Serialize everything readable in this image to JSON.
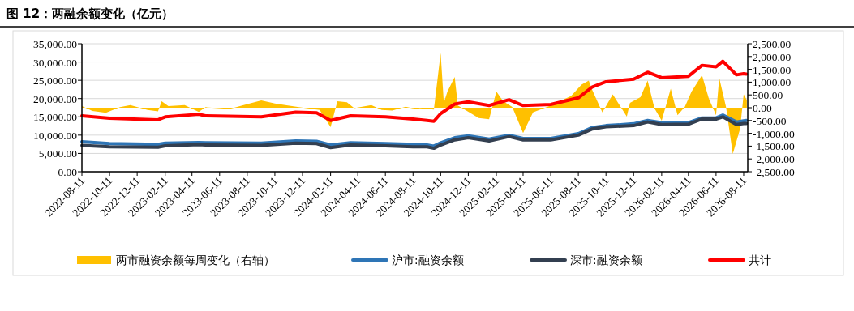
{
  "chart_data": {
    "type": "line",
    "title": "图 12：两融余额变化（亿元）",
    "xlim": [
      "2022-08-11",
      "2026-08-20"
    ],
    "xticks": [
      "2022-08-11",
      "2022-10-11",
      "2022-12-11",
      "2023-02-11",
      "2023-04-11",
      "2023-06-11",
      "2023-08-11",
      "2023-10-11",
      "2023-12-11",
      "2024-02-11",
      "2024-04-11",
      "2024-06-11",
      "2024-08-11",
      "2024-10-11",
      "2024-12-11",
      "2025-02-11",
      "2025-04-11",
      "2025-06-11",
      "2025-08-11",
      "2025-10-11",
      "2025-12-11",
      "2026-02-11",
      "2026-04-11",
      "2026-06-11",
      "2026-08-11"
    ],
    "ylim": [
      0,
      35000
    ],
    "yticks": [
      {
        "value": 0,
        "label": "0.00"
      },
      {
        "value": 5000,
        "label": "5,000.00"
      },
      {
        "value": 10000,
        "label": "10,000.00"
      },
      {
        "value": 15000,
        "label": "15,000.00"
      },
      {
        "value": 20000,
        "label": "20,000.00"
      },
      {
        "value": 25000,
        "label": "25,000.00"
      },
      {
        "value": 30000,
        "label": "30,000.00"
      },
      {
        "value": 35000,
        "label": "35,000.00"
      }
    ],
    "y2lim": [
      -2500,
      2500
    ],
    "y2ticks": [
      {
        "value": -2500,
        "label": "-2,500.00"
      },
      {
        "value": -2000,
        "label": "-2,000.00"
      },
      {
        "value": -1500,
        "label": "-1,500.00"
      },
      {
        "value": -1000,
        "label": "-1,000.00"
      },
      {
        "value": -500,
        "label": "-500.00"
      },
      {
        "value": 0,
        "label": "0.00"
      },
      {
        "value": 500,
        "label": "500.00"
      },
      {
        "value": 1000,
        "label": "1,000.00"
      },
      {
        "value": 1500,
        "label": "1,500.00"
      },
      {
        "value": 2000,
        "label": "2,000.00"
      },
      {
        "value": 2500,
        "label": "2,500.00"
      }
    ],
    "grid": "y",
    "legend": "bottom",
    "marker": "none",
    "line_style": "solid",
    "x": [
      "2022-08-11",
      "2022-10-11",
      "2023-01-26",
      "2023-02-11",
      "2023-04-26",
      "2023-05-11",
      "2023-09-11",
      "2023-11-26",
      "2024-01-11",
      "2024-02-11",
      "2024-03-26",
      "2024-06-11",
      "2024-08-11",
      "2024-09-11",
      "2024-09-26",
      "2024-10-11",
      "2024-11-11",
      "2024-12-11",
      "2025-01-26",
      "2025-03-11",
      "2025-04-11",
      "2025-06-11",
      "2025-08-11",
      "2025-09-11",
      "2025-10-11",
      "2025-12-11",
      "2026-01-11",
      "2026-02-11",
      "2026-04-11",
      "2026-05-11",
      "2026-06-11",
      "2026-06-26",
      "2026-07-26",
      "2026-08-11",
      "2026-08-17"
    ],
    "series": [
      {
        "name": "两市融资余额每周变化（右轴）",
        "type": "area",
        "axis": "y2",
        "color": "#ffc000",
        "x": [
          "2022-08-11",
          "2022-09-03",
          "2022-10-03",
          "2022-11-03",
          "2022-11-26",
          "2023-01-03",
          "2023-01-26",
          "2023-02-03",
          "2023-02-18",
          "2023-03-26",
          "2023-04-26",
          "2023-05-11",
          "2023-07-03",
          "2023-08-03",
          "2023-09-11",
          "2023-10-11",
          "2023-11-03",
          "2023-12-03",
          "2024-01-18",
          "2024-02-11",
          "2024-02-26",
          "2024-03-18",
          "2024-04-03",
          "2024-05-11",
          "2024-06-03",
          "2024-06-26",
          "2024-07-26",
          "2024-08-18",
          "2024-08-26",
          "2024-09-26",
          "2024-10-11",
          "2024-10-18",
          "2024-10-26",
          "2024-11-11",
          "2024-11-18",
          "2025-01-03",
          "2025-01-26",
          "2025-02-11",
          "2025-02-26",
          "2025-03-18",
          "2025-04-11",
          "2025-05-03",
          "2025-06-11",
          "2025-07-26",
          "2025-08-18",
          "2025-09-03",
          "2025-09-11",
          "2025-10-03",
          "2025-10-26",
          "2025-11-26",
          "2025-12-03",
          "2025-12-26",
          "2026-01-11",
          "2026-01-26",
          "2026-02-11",
          "2026-03-03",
          "2026-03-18",
          "2026-04-03",
          "2026-04-18",
          "2026-05-11",
          "2026-05-26",
          "2026-06-11",
          "2026-06-18",
          "2026-07-03",
          "2026-07-18",
          "2026-08-03",
          "2026-08-11",
          "2026-08-18"
        ],
        "values": [
          60,
          -130,
          -200,
          20,
          100,
          -90,
          -140,
          250,
          60,
          100,
          -165,
          20,
          -50,
          100,
          285,
          170,
          100,
          20,
          -90,
          -760,
          250,
          210,
          -15,
          100,
          -90,
          -110,
          40,
          -50,
          -20,
          -75,
          2140,
          190,
          630,
          1200,
          90,
          -400,
          -450,
          630,
          250,
          30,
          -990,
          -180,
          90,
          460,
          900,
          1060,
          680,
          -180,
          520,
          -350,
          190,
          410,
          1060,
          -20,
          -510,
          740,
          -290,
          30,
          630,
          1270,
          360,
          -290,
          1170,
          30,
          -1800,
          -830,
          520,
          300
        ]
      },
      {
        "name": "沪市:融资余额",
        "color": "#2e75b6",
        "values": [
          8200,
          7700,
          7500,
          7800,
          8000,
          7900,
          7800,
          8400,
          8300,
          7300,
          7900,
          7700,
          7500,
          7300,
          7000,
          7900,
          9300,
          9800,
          8900,
          10000,
          9100,
          9100,
          10400,
          12100,
          12600,
          13100,
          14000,
          13400,
          13400,
          14700,
          14700,
          15500,
          13600,
          13900,
          14000
        ]
      },
      {
        "name": "深市:融资余额",
        "color": "#333f50",
        "values": [
          7200,
          6800,
          6700,
          7100,
          7400,
          7300,
          7200,
          7800,
          7700,
          6600,
          7300,
          7100,
          6800,
          6800,
          6400,
          7300,
          8700,
          9300,
          8400,
          9600,
          8700,
          8700,
          10000,
          11700,
          12300,
          12600,
          13600,
          12900,
          13000,
          14400,
          14400,
          15000,
          12900,
          13200,
          13200
        ]
      },
      {
        "name": "共计",
        "color": "#ff0000",
        "values": [
          15300,
          14600,
          14200,
          15000,
          15700,
          15300,
          15000,
          16300,
          16100,
          14000,
          15300,
          15000,
          14400,
          14000,
          13800,
          15900,
          18500,
          19100,
          18100,
          19700,
          18100,
          18400,
          20200,
          23200,
          24600,
          25300,
          27200,
          25700,
          26100,
          29100,
          28700,
          30200,
          26500,
          26800,
          26700
        ]
      }
    ]
  }
}
